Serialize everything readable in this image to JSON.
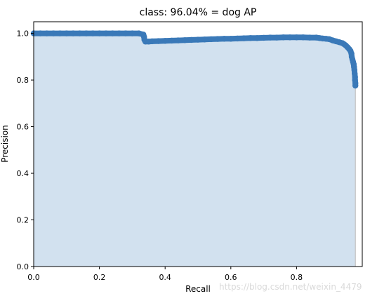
{
  "chart_data": {
    "type": "area",
    "title": "class: 96.04% = dog AP",
    "xlabel": "Recall",
    "ylabel": "Precision",
    "xlim": [
      0.0,
      1.0
    ],
    "ylim": [
      0.0,
      1.05
    ],
    "x_ticks": [
      "0.0",
      "0.2",
      "0.4",
      "0.6",
      "0.8"
    ],
    "y_ticks": [
      "0.0",
      "0.2",
      "0.4",
      "0.6",
      "0.8",
      "1.0"
    ],
    "grid": false,
    "colors": {
      "points": "#3a79b8",
      "fill": "#d2e1ef",
      "edge": "#c9c9c9",
      "axes": "#000000"
    },
    "series": [
      {
        "points": [
          [
            0.0,
            1.0
          ],
          [
            0.02,
            1.0
          ],
          [
            0.04,
            1.0
          ],
          [
            0.06,
            1.0
          ],
          [
            0.08,
            1.0
          ],
          [
            0.1,
            1.0
          ],
          [
            0.12,
            1.0
          ],
          [
            0.14,
            1.0
          ],
          [
            0.16,
            1.0
          ],
          [
            0.18,
            1.0
          ],
          [
            0.2,
            1.0
          ],
          [
            0.22,
            1.0
          ],
          [
            0.24,
            1.0
          ],
          [
            0.26,
            1.0
          ],
          [
            0.28,
            1.0
          ],
          [
            0.3,
            1.0
          ],
          [
            0.32,
            1.0
          ],
          [
            0.334,
            0.995
          ],
          [
            0.336,
            0.985
          ],
          [
            0.337,
            0.973
          ],
          [
            0.34,
            0.965
          ],
          [
            0.35,
            0.965
          ],
          [
            0.36,
            0.966
          ],
          [
            0.38,
            0.967
          ],
          [
            0.4,
            0.968
          ],
          [
            0.42,
            0.969
          ],
          [
            0.44,
            0.97
          ],
          [
            0.46,
            0.971
          ],
          [
            0.48,
            0.972
          ],
          [
            0.5,
            0.973
          ],
          [
            0.52,
            0.974
          ],
          [
            0.54,
            0.975
          ],
          [
            0.56,
            0.976
          ],
          [
            0.58,
            0.977
          ],
          [
            0.6,
            0.977
          ],
          [
            0.62,
            0.978
          ],
          [
            0.64,
            0.979
          ],
          [
            0.66,
            0.98
          ],
          [
            0.68,
            0.98
          ],
          [
            0.7,
            0.981
          ],
          [
            0.72,
            0.982
          ],
          [
            0.74,
            0.982
          ],
          [
            0.76,
            0.983
          ],
          [
            0.78,
            0.983
          ],
          [
            0.8,
            0.983
          ],
          [
            0.82,
            0.983
          ],
          [
            0.84,
            0.982
          ],
          [
            0.86,
            0.982
          ],
          [
            0.87,
            0.98
          ],
          [
            0.88,
            0.978
          ],
          [
            0.89,
            0.977
          ],
          [
            0.9,
            0.975
          ],
          [
            0.91,
            0.97
          ],
          [
            0.92,
            0.966
          ],
          [
            0.93,
            0.962
          ],
          [
            0.94,
            0.958
          ],
          [
            0.945,
            0.953
          ],
          [
            0.95,
            0.948
          ],
          [
            0.955,
            0.941
          ],
          [
            0.96,
            0.933
          ],
          [
            0.964,
            0.925
          ],
          [
            0.967,
            0.913
          ],
          [
            0.968,
            0.9
          ],
          [
            0.97,
            0.888
          ],
          [
            0.972,
            0.878
          ],
          [
            0.974,
            0.868
          ],
          [
            0.975,
            0.856
          ],
          [
            0.976,
            0.843
          ],
          [
            0.977,
            0.828
          ],
          [
            0.978,
            0.813
          ],
          [
            0.978,
            0.8
          ],
          [
            0.979,
            0.787
          ],
          [
            0.979,
            0.776
          ]
        ]
      }
    ],
    "watermark": "https://blog.csdn.net/weixin_4479"
  }
}
